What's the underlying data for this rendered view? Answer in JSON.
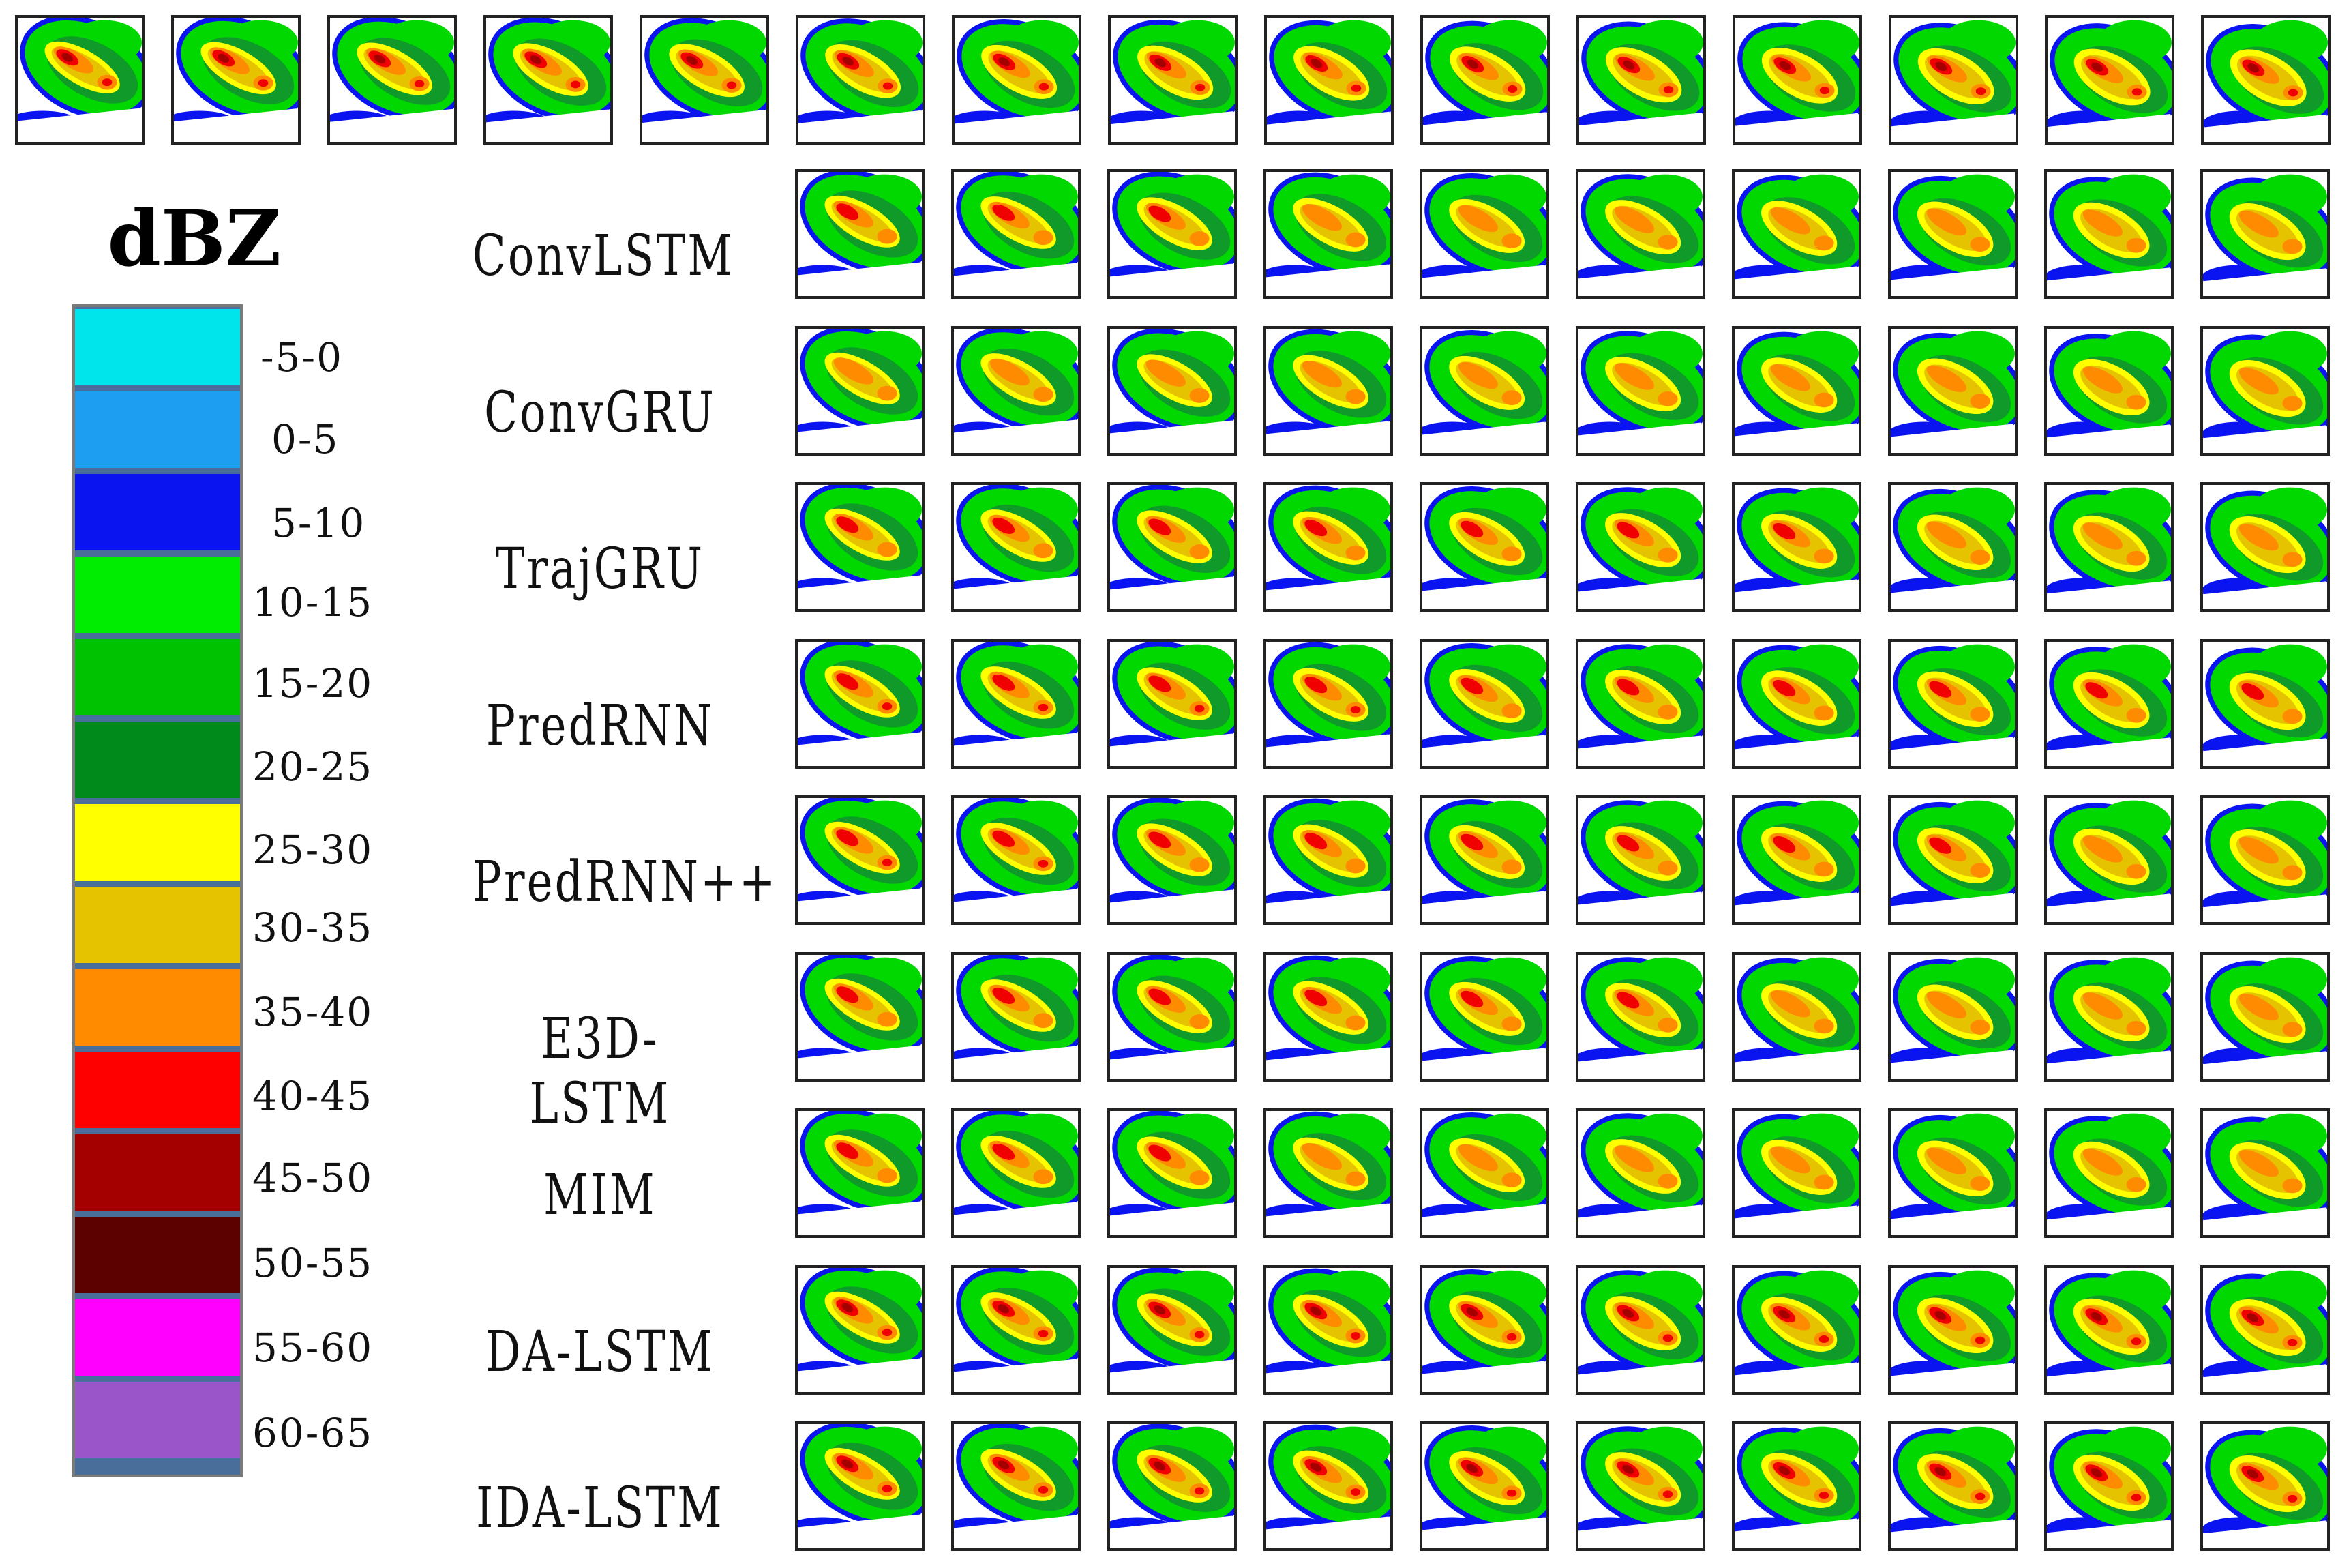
{
  "legend": {
    "title": "dBZ",
    "bins": [
      {
        "label": "-5-0",
        "color": "#00e5ec"
      },
      {
        "label": "0-5",
        "color": "#1e9ef0"
      },
      {
        "label": "5-10",
        "color": "#0a14f0"
      },
      {
        "label": "10-15",
        "color": "#00ec00"
      },
      {
        "label": "15-20",
        "color": "#00c200"
      },
      {
        "label": "20-25",
        "color": "#008a1c"
      },
      {
        "label": "25-30",
        "color": "#ffff00"
      },
      {
        "label": "30-35",
        "color": "#e6c300"
      },
      {
        "label": "35-40",
        "color": "#ff8c00"
      },
      {
        "label": "40-45",
        "color": "#ff0000"
      },
      {
        "label": "45-50",
        "color": "#a50000"
      },
      {
        "label": "50-55",
        "color": "#5c0000"
      },
      {
        "label": "55-60",
        "color": "#ff00ff"
      },
      {
        "label": "60-65",
        "color": "#9a55c8"
      }
    ]
  },
  "models": [
    "ConvLSTM",
    "ConvGRU",
    "TrajGRU",
    "PredRNN",
    "PredRNN++",
    "E3D-LSTM",
    "MIM",
    "DA-LSTM",
    "IDA-LSTM"
  ],
  "input_frame_count": 5,
  "forecast_frame_count": 10
}
